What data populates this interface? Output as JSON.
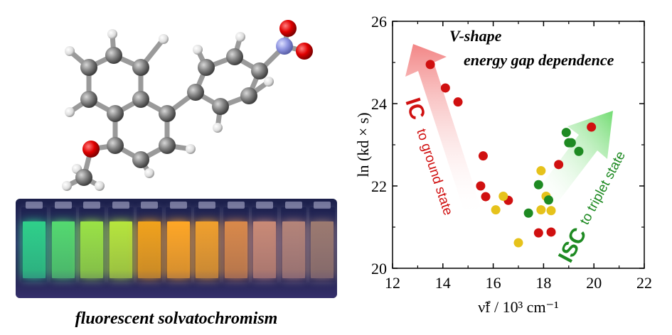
{
  "caption": "fluorescent solvatochromism",
  "vials": [
    {
      "color": "#2fd08a"
    },
    {
      "color": "#54d970"
    },
    {
      "color": "#9ae246"
    },
    {
      "color": "#b6e53d"
    },
    {
      "color": "#f1a21c"
    },
    {
      "color": "#ffa726"
    },
    {
      "color": "#f0a02d"
    },
    {
      "color": "#d9894a"
    },
    {
      "color": "#c98a76"
    },
    {
      "color": "#b48479"
    },
    {
      "color": "#9c7a70"
    }
  ],
  "chart_data": {
    "type": "scatter",
    "xlabel": "ν̃f / 10³ cm⁻¹",
    "ylabel": "ln (kd × s)",
    "xlim": [
      12,
      22
    ],
    "ylim": [
      20,
      26
    ],
    "xticks": [
      "12",
      "14",
      "16",
      "18",
      "20",
      "22"
    ],
    "yticks": [
      "20",
      "22",
      "24",
      "26"
    ],
    "title_line1": "V-shape",
    "title_line2": "energy gap dependence",
    "ic_label": "IC",
    "ic_sub": "to ground state",
    "isc_label": "ISC",
    "isc_sub": "to triplet state",
    "colors": {
      "red": "#d01010",
      "yellow": "#e6c21b",
      "green": "#1e8a22"
    },
    "points": [
      {
        "x": 13.5,
        "y": 24.95,
        "c": "red"
      },
      {
        "x": 14.1,
        "y": 24.38,
        "c": "red"
      },
      {
        "x": 14.6,
        "y": 24.04,
        "c": "red"
      },
      {
        "x": 15.6,
        "y": 22.73,
        "c": "red"
      },
      {
        "x": 15.5,
        "y": 22.0,
        "c": "red"
      },
      {
        "x": 15.7,
        "y": 21.74,
        "c": "red"
      },
      {
        "x": 16.6,
        "y": 21.65,
        "c": "red"
      },
      {
        "x": 17.8,
        "y": 20.86,
        "c": "red"
      },
      {
        "x": 18.3,
        "y": 20.88,
        "c": "red"
      },
      {
        "x": 18.6,
        "y": 22.52,
        "c": "red"
      },
      {
        "x": 19.9,
        "y": 23.43,
        "c": "red"
      },
      {
        "x": 16.1,
        "y": 21.42,
        "c": "yellow"
      },
      {
        "x": 16.4,
        "y": 21.75,
        "c": "yellow"
      },
      {
        "x": 17.0,
        "y": 20.62,
        "c": "yellow"
      },
      {
        "x": 17.9,
        "y": 22.37,
        "c": "yellow"
      },
      {
        "x": 17.9,
        "y": 21.42,
        "c": "yellow"
      },
      {
        "x": 18.1,
        "y": 21.75,
        "c": "yellow"
      },
      {
        "x": 18.3,
        "y": 21.4,
        "c": "yellow"
      },
      {
        "x": 17.4,
        "y": 21.34,
        "c": "green"
      },
      {
        "x": 17.8,
        "y": 22.03,
        "c": "green"
      },
      {
        "x": 18.2,
        "y": 21.66,
        "c": "green"
      },
      {
        "x": 18.9,
        "y": 23.3,
        "c": "green"
      },
      {
        "x": 19.0,
        "y": 23.05,
        "c": "green"
      },
      {
        "x": 19.1,
        "y": 23.05,
        "c": "green"
      },
      {
        "x": 19.4,
        "y": 22.84,
        "c": "green"
      }
    ]
  }
}
